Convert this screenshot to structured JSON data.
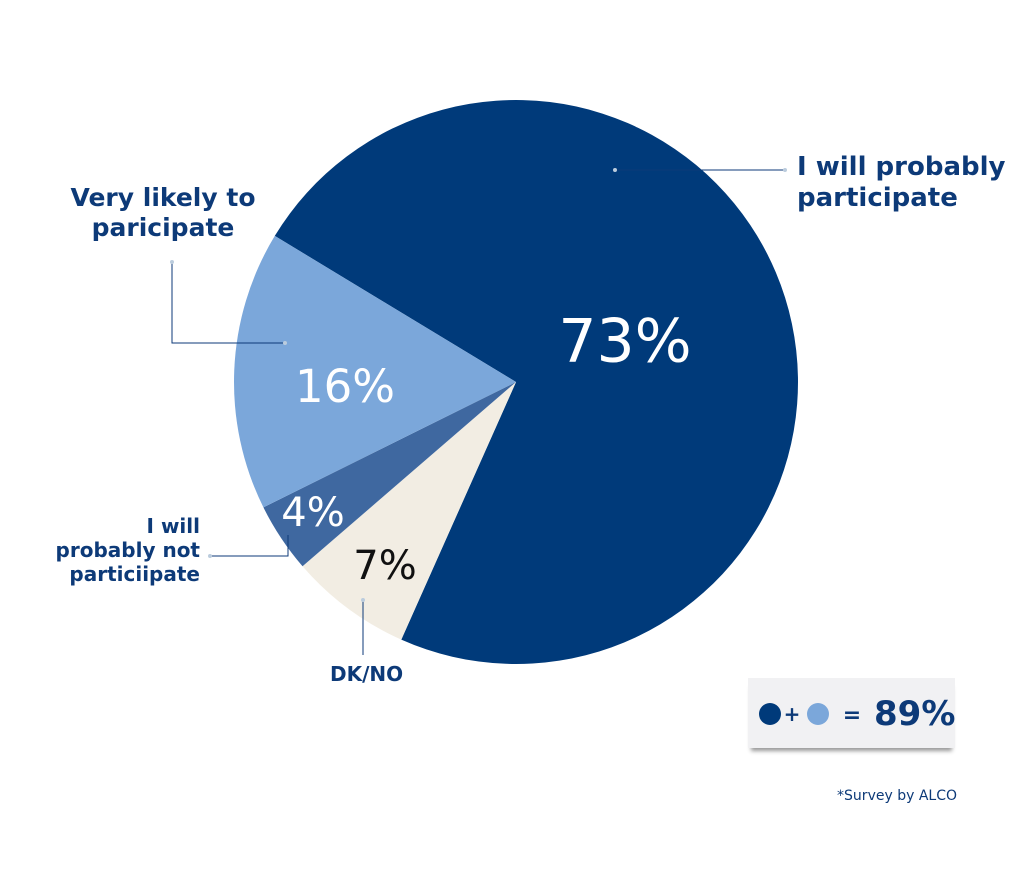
{
  "chart_data": {
    "type": "pie",
    "categories": [
      "I will probably participate",
      "DK/NO",
      "I will probably not particiipate",
      "Very likely to paricipate"
    ],
    "values": [
      73,
      7,
      4,
      16
    ],
    "value_labels": [
      "73%",
      "7%",
      "4%",
      "16%"
    ],
    "colors": [
      "#003a7a",
      "#f2ede3",
      "#3f68a0",
      "#7ba7da"
    ],
    "summary": {
      "plus": "+",
      "equals": "=",
      "text": "89%"
    },
    "footnote": "*Survey by ALCO"
  }
}
